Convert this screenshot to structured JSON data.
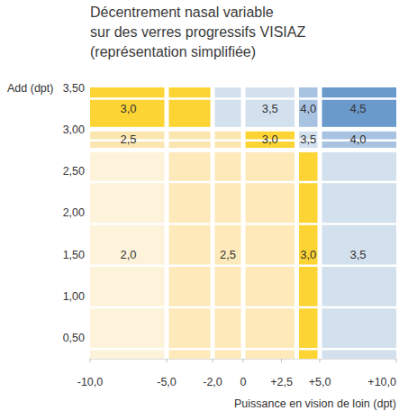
{
  "chart_data": {
    "type": "heatmap",
    "title": [
      "Décentrement nasal variable",
      "sur des verres progressifs VISIAZ"
    ],
    "subtitle": "(représentation simplifiée)",
    "x_label": "Puissance en vision de loin (dpt)",
    "y_label": "Add (dpt)",
    "xlim": [
      -10,
      10
    ],
    "ylim": [
      0.25,
      3.5
    ],
    "xticks": [
      {
        "value": -10,
        "label": "-10,0"
      },
      {
        "value": -5,
        "label": "-5,0"
      },
      {
        "value": -2,
        "label": "-2,0"
      },
      0,
      {
        "value": 2.5,
        "label": "+2,5"
      },
      {
        "value": 5,
        "label": "+5,0"
      },
      {
        "value": 10,
        "label": "+10,0"
      }
    ],
    "yticks": [
      {
        "value": 0.5,
        "label": "0,50"
      },
      {
        "value": 1,
        "label": "1,00"
      },
      {
        "value": 1.5,
        "label": "1,50"
      },
      {
        "value": 2,
        "label": "2,00"
      },
      {
        "value": 2.5,
        "label": "2,50"
      },
      {
        "value": 3,
        "label": "3,00"
      },
      {
        "value": 3.5,
        "label": "3,50"
      }
    ],
    "grid": true,
    "data_labels": true,
    "cells": [
      {
        "x": [
          -10,
          -5
        ],
        "y": [
          3,
          3.5
        ],
        "value": 3,
        "value_label": "3,0"
      },
      {
        "x": [
          -5,
          -2
        ],
        "y": [
          3,
          3.5
        ],
        "value": 3,
        "value_label": null
      },
      {
        "x": [
          -2,
          0
        ],
        "y": [
          3,
          3.5
        ],
        "value": 3.5,
        "value_label": null
      },
      {
        "x": [
          0,
          3.5
        ],
        "y": [
          3,
          3.5
        ],
        "value": 3.5,
        "value_label": "3,5"
      },
      {
        "x": [
          3.5,
          5
        ],
        "y": [
          3,
          3.5
        ],
        "value": 4,
        "value_label": "4,0"
      },
      {
        "x": [
          5,
          10
        ],
        "y": [
          3,
          3.5
        ],
        "value": 4.5,
        "value_label": "4,5"
      },
      {
        "x": [
          -10,
          -5
        ],
        "y": [
          2.75,
          3
        ],
        "value": 2.5,
        "value_label": "2,5"
      },
      {
        "x": [
          -5,
          -2
        ],
        "y": [
          2.75,
          3
        ],
        "value": 2.5,
        "value_label": null
      },
      {
        "x": [
          -2,
          0
        ],
        "y": [
          2.75,
          3
        ],
        "value": 2.5,
        "value_label": null
      },
      {
        "x": [
          0,
          3.5
        ],
        "y": [
          2.75,
          3
        ],
        "value": 3,
        "value_label": "3,0"
      },
      {
        "x": [
          3.5,
          5
        ],
        "y": [
          2.75,
          3
        ],
        "value": 3.5,
        "value_label": "3,5"
      },
      {
        "x": [
          5,
          10
        ],
        "y": [
          2.75,
          3
        ],
        "value": 4,
        "value_label": "4,0"
      },
      {
        "x": [
          -10,
          -5
        ],
        "y": [
          0.25,
          2.75
        ],
        "value": 2,
        "value_label": "2,0"
      },
      {
        "x": [
          -5,
          -2
        ],
        "y": [
          0.25,
          2.75
        ],
        "value": 2.5,
        "value_label": null
      },
      {
        "x": [
          -2,
          0
        ],
        "y": [
          0.25,
          2.75
        ],
        "value": 2.5,
        "value_label": "2,5"
      },
      {
        "x": [
          0,
          3.5
        ],
        "y": [
          0.25,
          2.75
        ],
        "value": 2.5,
        "value_label": null
      },
      {
        "x": [
          3.5,
          5
        ],
        "y": [
          0.25,
          2.75
        ],
        "value": 3,
        "value_label": "3,0"
      },
      {
        "x": [
          5,
          10
        ],
        "y": [
          0.25,
          2.75
        ],
        "value": 3.5,
        "value_label": "3,5"
      }
    ],
    "colors": [
      "#fcd433",
      "#fcd433",
      "#d3e0ee",
      "#d3e0ee",
      "#a8c3e2",
      "#6a99cc",
      "#fbe6b0",
      "#fbe6b0",
      "#fbe6b0",
      "#fcd433",
      "#d3e0ee",
      "#a8c3e2",
      "#fdf3da",
      "#fde9ba",
      "#fde9ba",
      "#fde9ba",
      "#fcd433",
      "#d3e0ee"
    ]
  }
}
